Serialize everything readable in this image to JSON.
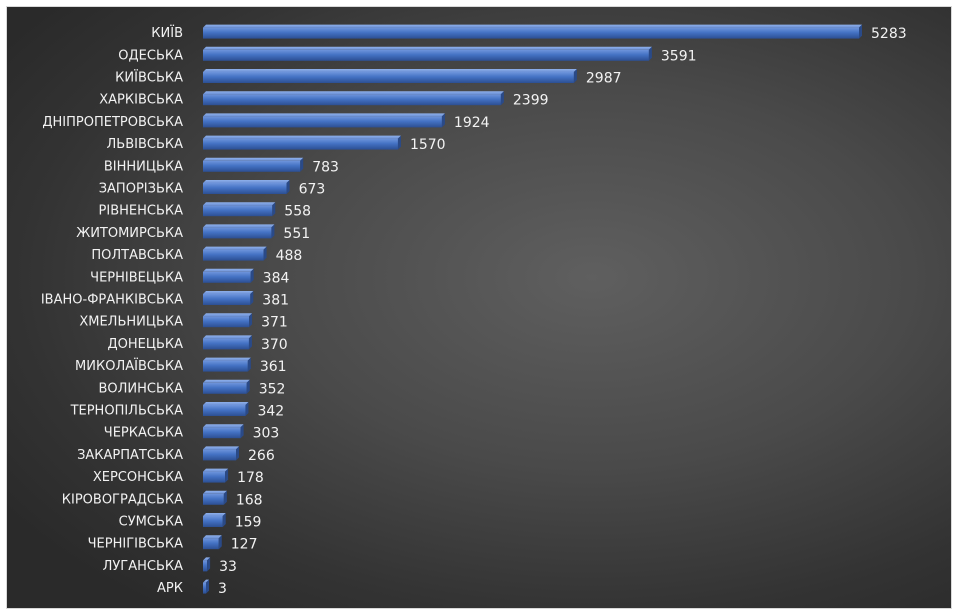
{
  "chart_data": {
    "type": "bar",
    "orientation": "horizontal",
    "style": "3d",
    "bar_color": "#4472c4",
    "background": "dark-gradient",
    "grid": false,
    "categories": [
      "КИЇВ",
      "ОДЕСЬКА",
      "КИЇВСЬКА",
      "ХАРКІВСЬКА",
      "ДНІПРОПЕТРОВСЬКА",
      "ЛЬВІВСЬКА",
      "ВІННИЦЬКА",
      "ЗАПОРІЗЬКА",
      "РІВНЕНСЬКА",
      "ЖИТОМИРСЬКА",
      "ПОЛТАВСЬКА",
      "ЧЕРНІВЕЦЬКА",
      "ІВАНО-ФРАНКІВСЬКА",
      "ХМЕЛЬНИЦЬКА",
      "ДОНЕЦЬКА",
      "МИКОЛАЇВСЬКА",
      "ВОЛИНСЬКА",
      "ТЕРНОПІЛЬСЬКА",
      "ЧЕРКАСЬКА",
      "ЗАКАРПАТСЬКА",
      "ХЕРСОНСЬКА",
      "КІРОВОГРАДСЬКА",
      "СУМСЬКА",
      "ЧЕРНІГІВСЬКА",
      "ЛУГАНСЬКА",
      "АРК"
    ],
    "values": [
      5283,
      3591,
      2987,
      2399,
      1924,
      1570,
      783,
      673,
      558,
      551,
      488,
      384,
      381,
      371,
      370,
      361,
      352,
      342,
      303,
      266,
      178,
      168,
      159,
      127,
      33,
      3
    ],
    "xlim": [
      0,
      5283
    ]
  }
}
